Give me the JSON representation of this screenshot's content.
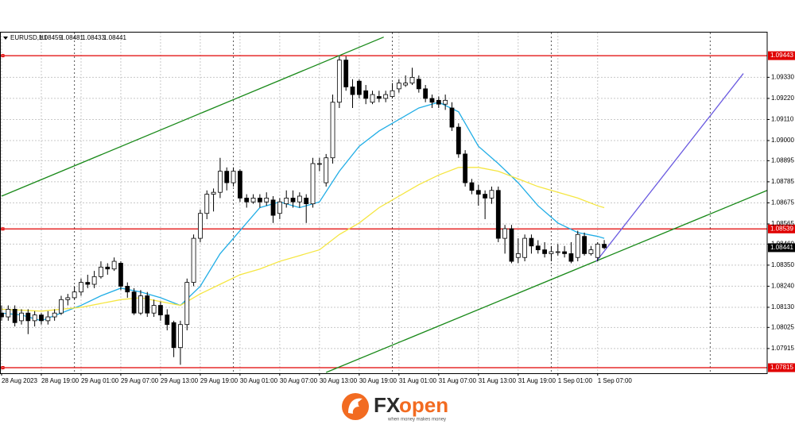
{
  "chart_data": {
    "type": "candlestick",
    "symbol": "EURUSD,H1",
    "categories": [
      "28 Aug 2023",
      null,
      null,
      null,
      null,
      null,
      "28 Aug 19:00",
      null,
      null,
      null,
      null,
      null,
      "29 Aug 01:00",
      null,
      null,
      null,
      null,
      null,
      "29 Aug 07:00",
      null,
      null,
      null,
      null,
      null,
      "29 Aug 13:00",
      null,
      null,
      null,
      null,
      null,
      "29 Aug 19:00",
      null,
      null,
      null,
      null,
      null,
      "30 Aug 01:00",
      null,
      null,
      null,
      null,
      null,
      "30 Aug 07:00",
      null,
      null,
      null,
      null,
      null,
      "30 Aug 13:00",
      null,
      null,
      null,
      null,
      null,
      "30 Aug 19:00",
      null,
      null,
      null,
      null,
      null,
      "31 Aug 01:00",
      null,
      null,
      null,
      null,
      null,
      "31 Aug 07:00",
      null,
      null,
      null,
      null,
      null,
      "31 Aug 13:00",
      null,
      null,
      null,
      null,
      null,
      "31 Aug 19:00",
      null,
      null,
      null,
      null,
      null,
      "1 Sep 01:00",
      null,
      null,
      null,
      null,
      null,
      "1 Sep 07:00",
      null
    ],
    "open": [
      1.081,
      1.0808,
      1.0812,
      1.0806,
      1.081,
      1.0806,
      1.0809,
      1.0806,
      1.0808,
      1.081,
      1.0817,
      1.0818,
      1.0821,
      1.0826,
      1.0825,
      1.0829,
      1.0834,
      1.0833,
      1.0836,
      1.0824,
      1.0821,
      1.081,
      1.0819,
      1.081,
      1.0814,
      1.0809,
      1.0805,
      1.0792,
      1.0804,
      1.0826,
      1.0849,
      1.0862,
      1.0872,
      1.0873,
      1.0884,
      1.0878,
      1.0884,
      1.087,
      1.0868,
      1.087,
      1.0868,
      1.0869,
      1.0862,
      1.0867,
      1.087,
      1.0868,
      1.087,
      1.0867,
      1.0888,
      1.0878,
      1.0891,
      1.092,
      1.0942,
      1.0928,
      1.0931,
      1.0926,
      1.092,
      1.0923,
      1.0922,
      1.0923,
      1.0927,
      1.0929,
      1.093,
      1.0932,
      1.0927,
      1.0922,
      1.0921,
      1.0919,
      1.0917,
      1.0907,
      1.0893,
      1.0878,
      1.0874,
      1.0872,
      1.087,
      1.0874,
      1.0849,
      1.0854,
      1.0839,
      1.0839,
      1.0849,
      1.0845,
      1.0843,
      1.0841,
      1.0842,
      1.0842,
      1.0841,
      1.0839,
      1.085,
      1.0841,
      1.0839,
      1.08459
    ],
    "high": [
      1.0814,
      1.0814,
      1.0814,
      1.0812,
      1.0812,
      1.0811,
      1.081,
      1.0811,
      1.0812,
      1.0819,
      1.082,
      1.0824,
      1.0828,
      1.083,
      1.0832,
      1.0837,
      1.0836,
      1.0839,
      1.0837,
      1.0826,
      1.0823,
      1.0822,
      1.0821,
      1.0817,
      1.0816,
      1.0812,
      1.0806,
      1.0806,
      1.0828,
      1.0851,
      1.0864,
      1.0874,
      1.0875,
      1.0891,
      1.0886,
      1.0886,
      1.0885,
      1.0872,
      1.0872,
      1.0872,
      1.0873,
      1.0871,
      1.087,
      1.0874,
      1.0874,
      1.0873,
      1.0872,
      1.0891,
      1.0891,
      1.0893,
      1.0924,
      1.0944,
      1.0944,
      1.0932,
      1.0932,
      1.0929,
      1.0926,
      1.0926,
      1.0926,
      1.093,
      1.0932,
      1.0934,
      1.0938,
      1.0934,
      1.0929,
      1.0924,
      1.0923,
      1.0924,
      1.092,
      1.0909,
      1.0895,
      1.088,
      1.0877,
      1.0874,
      1.0876,
      1.0876,
      1.0856,
      1.0856,
      1.0849,
      1.0851,
      1.0851,
      1.0848,
      1.0847,
      1.0845,
      1.0846,
      1.0845,
      1.0847,
      1.0853,
      1.0852,
      1.0845,
      1.0847,
      1.08481
    ],
    "low": [
      1.0806,
      1.0806,
      1.0803,
      1.0804,
      1.0799,
      1.0803,
      1.0804,
      1.0804,
      1.0806,
      1.0809,
      1.0814,
      1.0817,
      1.0819,
      1.0823,
      1.0823,
      1.0828,
      1.083,
      1.0832,
      1.0822,
      1.0818,
      1.0809,
      1.0809,
      1.0808,
      1.0808,
      1.0806,
      1.0801,
      1.0787,
      1.0783,
      1.0801,
      1.0824,
      1.0847,
      1.0859,
      1.0863,
      1.087,
      1.0874,
      1.0876,
      1.0868,
      1.0865,
      1.0867,
      1.0865,
      1.0866,
      1.0857,
      1.0859,
      1.0865,
      1.0865,
      1.0865,
      1.0857,
      1.0865,
      1.0884,
      1.0876,
      1.0888,
      1.0917,
      1.0926,
      1.0917,
      1.0922,
      1.0919,
      1.0919,
      1.092,
      1.092,
      1.0922,
      1.0925,
      1.0928,
      1.0929,
      1.0925,
      1.092,
      1.0917,
      1.0917,
      1.0916,
      1.0905,
      1.0891,
      1.0876,
      1.0872,
      1.0866,
      1.0859,
      1.0867,
      1.0847,
      1.0841,
      1.0836,
      1.0836,
      1.0837,
      1.0841,
      1.0841,
      1.0839,
      1.0837,
      1.084,
      1.0839,
      1.0836,
      1.0837,
      1.084,
      1.084,
      1.0837,
      1.08433
    ],
    "close": [
      1.0808,
      1.0812,
      1.0805,
      1.081,
      1.0806,
      1.0809,
      1.0806,
      1.0808,
      1.081,
      1.0817,
      1.0818,
      1.0821,
      1.0826,
      1.0825,
      1.0829,
      1.0834,
      1.0833,
      1.0837,
      1.0824,
      1.0821,
      1.081,
      1.0819,
      1.081,
      1.0814,
      1.0809,
      1.0804,
      1.0792,
      1.0804,
      1.0826,
      1.0849,
      1.0862,
      1.0872,
      1.0873,
      1.0884,
      1.0878,
      1.0884,
      1.087,
      1.0868,
      1.087,
      1.0868,
      1.087,
      1.0861,
      1.0868,
      1.087,
      1.0868,
      1.0871,
      1.0867,
      1.0888,
      1.0888,
      1.0891,
      1.092,
      1.0942,
      1.0928,
      1.0924,
      1.0924,
      1.0922,
      1.0924,
      1.0922,
      1.0924,
      1.0926,
      1.093,
      1.093,
      1.0933,
      1.0927,
      1.0922,
      1.092,
      1.0919,
      1.0921,
      1.0907,
      1.0893,
      1.0878,
      1.0874,
      1.0872,
      1.087,
      1.0874,
      1.0849,
      1.0854,
      1.0837,
      1.0841,
      1.0849,
      1.0845,
      1.0843,
      1.0841,
      1.0842,
      1.0842,
      1.0841,
      1.0837,
      1.0851,
      1.0841,
      1.0843,
      1.0846,
      1.08441
    ],
    "up_color": "#ffffff",
    "down_color": "#000000",
    "xlim": [
      -0.24,
      115.6
    ],
    "ylim": [
      1.07786,
      1.09547
    ],
    "yticks": [
      {
        "value": 1.0933,
        "label": "1.09330"
      },
      {
        "value": 1.0922,
        "label": "1.09220"
      },
      {
        "value": 1.0911,
        "label": "1.09110"
      },
      {
        "value": 1.09,
        "label": "1.09000"
      },
      1.08895,
      1.08785,
      1.08675,
      1.08565,
      {
        "value": 1.0846,
        "label": "1.08460"
      },
      {
        "value": 1.0835,
        "label": "1.08350"
      },
      {
        "value": 1.0824,
        "label": "1.08240"
      },
      {
        "value": 1.0813,
        "label": "1.08130"
      },
      1.08025,
      1.07915
    ],
    "grid": true,
    "separators": [
      11,
      35,
      59,
      83,
      107
    ],
    "levels": [
      {
        "value": 1.09443,
        "color": "#e00000"
      },
      {
        "value": 1.08539,
        "color": "#e00000"
      },
      {
        "value": 1.07815,
        "color": "#e00000"
      }
    ],
    "lines": [
      {
        "color": "#22aee6",
        "x": [
          0,
          3,
          6,
          9,
          12,
          15,
          18,
          21,
          24,
          27,
          30,
          33,
          36,
          39,
          42,
          45,
          48,
          51,
          54,
          57,
          60,
          63,
          66,
          69,
          72,
          75,
          78,
          81,
          84,
          87,
          90,
          91
        ],
        "values": [
          1.081,
          1.0809,
          1.0806,
          1.081,
          1.0814,
          1.0819,
          1.0823,
          1.0821,
          1.0818,
          1.0814,
          1.0824,
          1.0841,
          1.0853,
          1.0865,
          1.0868,
          1.0865,
          1.0868,
          1.0884,
          1.0897,
          1.0905,
          1.0911,
          1.0917,
          1.092,
          1.0915,
          1.0897,
          1.0888,
          1.0878,
          1.0866,
          1.0857,
          1.0852,
          1.085,
          1.0849
        ]
      },
      {
        "color": "#f5e642",
        "x": [
          0,
          6,
          12,
          18,
          21,
          24,
          27,
          30,
          33,
          36,
          39,
          42,
          45,
          48,
          51,
          54,
          57,
          60,
          63,
          66,
          69,
          72,
          75,
          78,
          81,
          84,
          87,
          90,
          91
        ],
        "values": [
          1.0812,
          1.0811,
          1.0813,
          1.0817,
          1.0818,
          1.0816,
          1.0814,
          1.082,
          1.0825,
          1.083,
          1.0833,
          1.0837,
          1.084,
          1.0843,
          1.0851,
          1.0857,
          1.0865,
          1.0871,
          1.0877,
          1.0882,
          1.0886,
          1.0886,
          1.0884,
          1.088,
          1.0876,
          1.0873,
          1.087,
          1.0866,
          1.0865
        ]
      }
    ],
    "trendlines": [
      {
        "color": "#1a8a1a",
        "x": [
          0,
          57.7
        ],
        "values": [
          1.0871,
          1.0954
        ]
      },
      {
        "color": "#1a8a1a",
        "x": [
          49,
          115.6
        ],
        "values": [
          1.0779,
          1.0874
        ]
      },
      {
        "color": "#6a5ae0",
        "x": [
          89.8,
          112
        ],
        "values": [
          1.0837,
          1.0935
        ]
      }
    ]
  },
  "logo": {
    "brand_prefix": "FX",
    "brand_suffix": "open",
    "tagline": "when money makes money"
  }
}
